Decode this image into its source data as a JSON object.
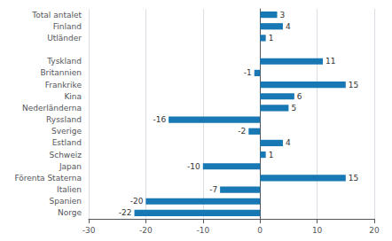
{
  "chart_data": {
    "type": "bar",
    "orientation": "horizontal",
    "categories": [
      "Norge",
      "Spanien",
      "Italien",
      "Förenta Staterna",
      "Japan",
      "Schweiz",
      "Estland",
      "Sverige",
      "Ryssland",
      "Nederländerna",
      "Kina",
      "Frankrike",
      "Britannien",
      "Tyskland",
      null,
      "Utländer",
      "Finland",
      "Total antalet"
    ],
    "values": [
      -22,
      -20,
      -7,
      15,
      -10,
      1,
      4,
      -2,
      -16,
      5,
      6,
      15,
      -1,
      11,
      null,
      1,
      4,
      3
    ],
    "color": "#1878b4",
    "xlim": [
      -30,
      20
    ],
    "xticks": [
      -30,
      -20,
      -10,
      0,
      10,
      20
    ],
    "grid": true,
    "data_labels": true
  }
}
